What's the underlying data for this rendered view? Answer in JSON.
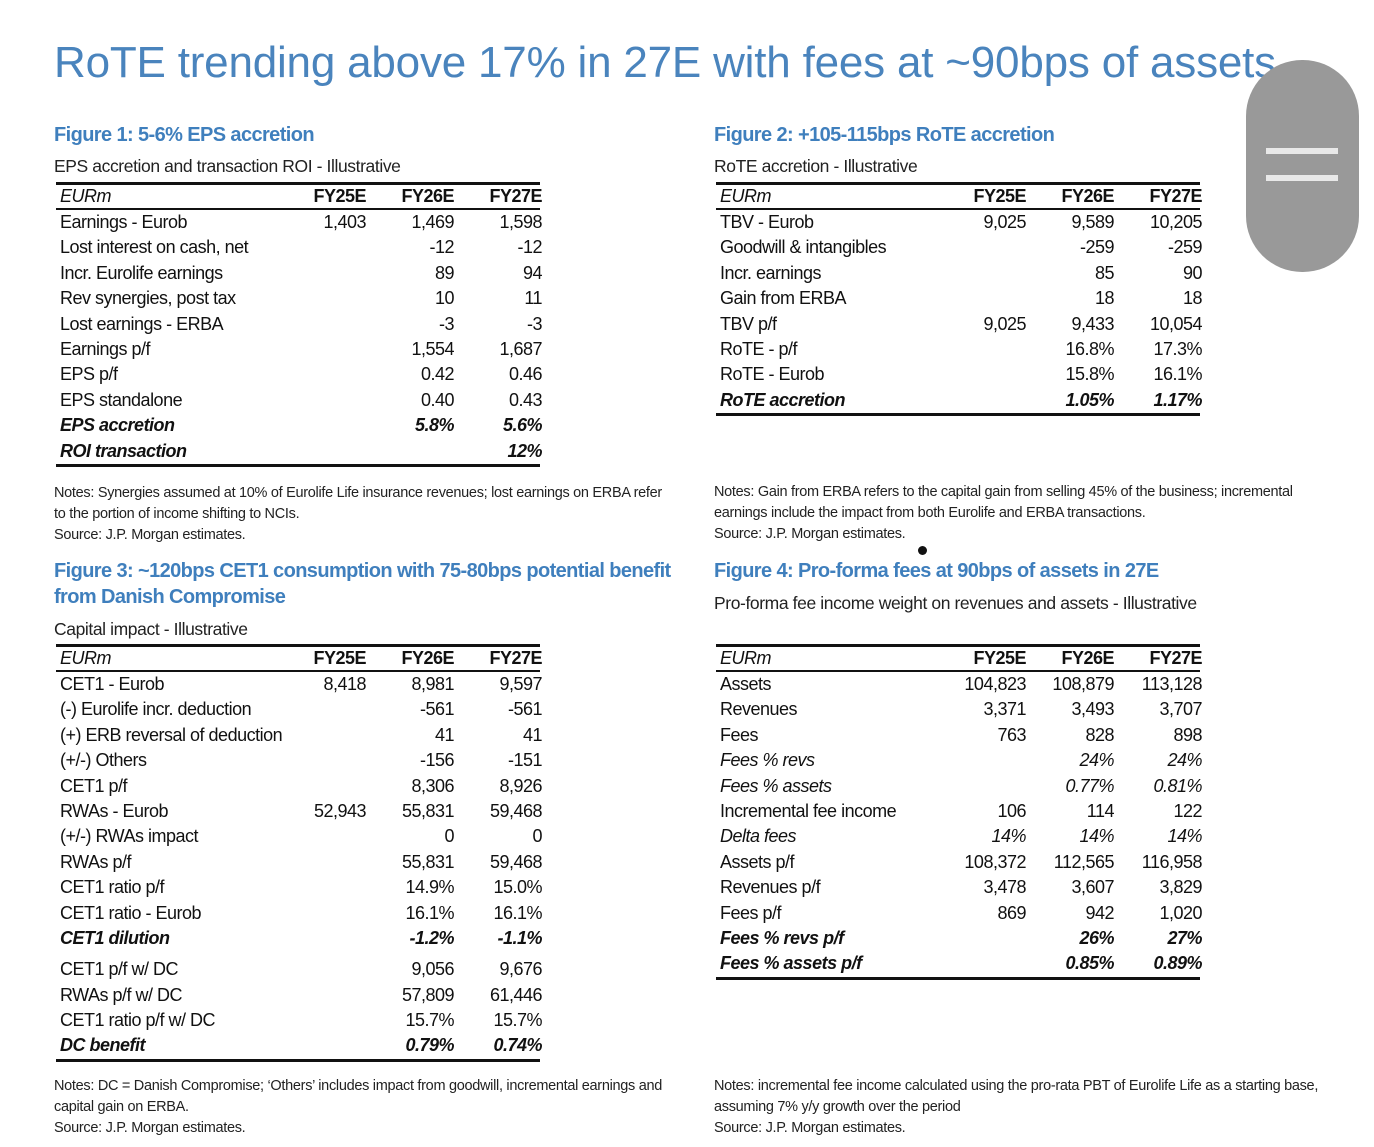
{
  "title": "RoTE trending above 17% in 27E with fees at ~90bps of assets",
  "columns": [
    "EURm",
    "FY25E",
    "FY26E",
    "FY27E"
  ],
  "figures": {
    "fig1": {
      "title": "Figure 1: 5-6% EPS accretion",
      "subtitle": "EPS accretion and transaction ROI - Illustrative",
      "rows": [
        {
          "label": "Earnings - Eurob",
          "values": [
            "1,403",
            "1,469",
            "1,598"
          ]
        },
        {
          "label": "Lost interest on cash, net",
          "values": [
            "",
            "-12",
            "-12"
          ]
        },
        {
          "label": "Incr. Eurolife earnings",
          "values": [
            "",
            "89",
            "94"
          ]
        },
        {
          "label": "Rev synergies, post tax",
          "values": [
            "",
            "10",
            "11"
          ]
        },
        {
          "label": "Lost earnings - ERBA",
          "values": [
            "",
            "-3",
            "-3"
          ]
        },
        {
          "label": "Earnings p/f",
          "values": [
            "",
            "1,554",
            "1,687"
          ]
        },
        {
          "label": "EPS p/f",
          "values": [
            "",
            "0.42",
            "0.46"
          ]
        },
        {
          "label": "EPS standalone",
          "values": [
            "",
            "0.40",
            "0.43"
          ]
        },
        {
          "label": "EPS accretion",
          "values": [
            "",
            "5.8%",
            "5.6%"
          ],
          "style": "bold italic"
        },
        {
          "label": "ROI transaction",
          "values": [
            "",
            "",
            "12%"
          ],
          "style": "bold italic"
        }
      ],
      "notes": [
        "Notes: Synergies assumed at 10% of Eurolife Life insurance revenues; lost earnings on ERBA refer to the portion of income shifting to NCIs.",
        "Source: J.P. Morgan estimates."
      ]
    },
    "fig2": {
      "title": "Figure 2: +105-115bps RoTE accretion",
      "subtitle": "RoTE accretion - Illustrative",
      "rows": [
        {
          "label": "TBV - Eurob",
          "values": [
            "9,025",
            "9,589",
            "10,205"
          ]
        },
        {
          "label": "Goodwill & intangibles",
          "values": [
            "",
            "-259",
            "-259"
          ]
        },
        {
          "label": "Incr. earnings",
          "values": [
            "",
            "85",
            "90"
          ]
        },
        {
          "label": "Gain from ERBA",
          "values": [
            "",
            "18",
            "18"
          ]
        },
        {
          "label": "TBV p/f",
          "values": [
            "9,025",
            "9,433",
            "10,054"
          ]
        },
        {
          "label": "RoTE - p/f",
          "values": [
            "",
            "16.8%",
            "17.3%"
          ]
        },
        {
          "label": "RoTE - Eurob",
          "values": [
            "",
            "15.8%",
            "16.1%"
          ]
        },
        {
          "label": "RoTE accretion",
          "values": [
            "",
            "1.05%",
            "1.17%"
          ],
          "style": "bold italic"
        }
      ],
      "notes": [
        "Notes: Gain from ERBA refers to the capital gain from selling 45% of the business; incremental earnings include the impact from both Eurolife and ERBA transactions.",
        "Source: J.P. Morgan estimates."
      ]
    },
    "fig3": {
      "title": "Figure 3: ~120bps CET1 consumption with 75-80bps potential benefit from Danish Compromise",
      "subtitle": "Capital impact - Illustrative",
      "rows": [
        {
          "label": "CET1 - Eurob",
          "values": [
            "8,418",
            "8,981",
            "9,597"
          ]
        },
        {
          "label": "(-) Eurolife incr. deduction",
          "values": [
            "",
            "-561",
            "-561"
          ]
        },
        {
          "label": "(+) ERB reversal of deduction",
          "values": [
            "",
            "41",
            "41"
          ]
        },
        {
          "label": "(+/-) Others",
          "values": [
            "",
            "-156",
            "-151"
          ]
        },
        {
          "label": "CET1 p/f",
          "values": [
            "",
            "8,306",
            "8,926"
          ]
        },
        {
          "label": "RWAs - Eurob",
          "values": [
            "52,943",
            "55,831",
            "59,468"
          ]
        },
        {
          "label": "(+/-) RWAs impact",
          "values": [
            "",
            "0",
            "0"
          ]
        },
        {
          "label": "RWAs p/f",
          "values": [
            "",
            "55,831",
            "59,468"
          ]
        },
        {
          "label": "CET1 ratio p/f",
          "values": [
            "",
            "14.9%",
            "15.0%"
          ]
        },
        {
          "label": "CET1 ratio - Eurob",
          "values": [
            "",
            "16.1%",
            "16.1%"
          ]
        },
        {
          "label": "CET1 dilution",
          "values": [
            "",
            "-1.2%",
            "-1.1%"
          ],
          "style": "bold italic"
        },
        {
          "label": "CET1 p/f w/ DC",
          "values": [
            "",
            "9,056",
            "9,676"
          ]
        },
        {
          "label": "RWAs p/f w/ DC",
          "values": [
            "",
            "57,809",
            "61,446"
          ]
        },
        {
          "label": "CET1 ratio p/f w/ DC",
          "values": [
            "",
            "15.7%",
            "15.7%"
          ]
        },
        {
          "label": "DC benefit",
          "values": [
            "",
            "0.79%",
            "0.74%"
          ],
          "style": "bold italic"
        }
      ],
      "notes": [
        "Notes: DC = Danish Compromise; ‘Others’ includes impact from goodwill, incremental earnings and capital gain on ERBA.",
        "Source: J.P. Morgan estimates."
      ]
    },
    "fig4": {
      "title": "Figure 4: Pro-forma fees at 90bps of assets in 27E",
      "subtitle": "Pro-forma fee income weight on revenues and assets - Illustrative",
      "rows": [
        {
          "label": "Assets",
          "values": [
            "104,823",
            "108,879",
            "113,128"
          ]
        },
        {
          "label": "Revenues",
          "values": [
            "3,371",
            "3,493",
            "3,707"
          ]
        },
        {
          "label": "Fees",
          "values": [
            "763",
            "828",
            "898"
          ]
        },
        {
          "label": "Fees % revs",
          "values": [
            "",
            "24%",
            "24%"
          ],
          "style": "italic"
        },
        {
          "label": "Fees % assets",
          "values": [
            "",
            "0.77%",
            "0.81%"
          ],
          "style": "italic"
        },
        {
          "label": "Incremental fee income",
          "values": [
            "106",
            "114",
            "122"
          ]
        },
        {
          "label": "Delta fees",
          "values": [
            "14%",
            "14%",
            "14%"
          ],
          "style": "italic"
        },
        {
          "label": "Assets p/f",
          "values": [
            "108,372",
            "112,565",
            "116,958"
          ]
        },
        {
          "label": "Revenues p/f",
          "values": [
            "3,478",
            "3,607",
            "3,829"
          ]
        },
        {
          "label": "Fees p/f",
          "values": [
            "869",
            "942",
            "1,020"
          ]
        },
        {
          "label": "Fees % revs p/f",
          "values": [
            "",
            "26%",
            "27%"
          ],
          "style": "bold italic"
        },
        {
          "label": "Fees % assets p/f",
          "values": [
            "",
            "0.85%",
            "0.89%"
          ],
          "style": "bold italic"
        }
      ],
      "notes": [
        "Notes: incremental fee income calculated using the pro-rata PBT of Eurolife Life as a starting base, assuming 7% y/y growth over the period",
        "Source: J.P. Morgan estimates."
      ]
    }
  },
  "overlay": {
    "icon": "drag-handle-icon",
    "color": "#999999"
  },
  "colors": {
    "title": "#4a84bd",
    "figure_title": "#3f7fbd"
  }
}
